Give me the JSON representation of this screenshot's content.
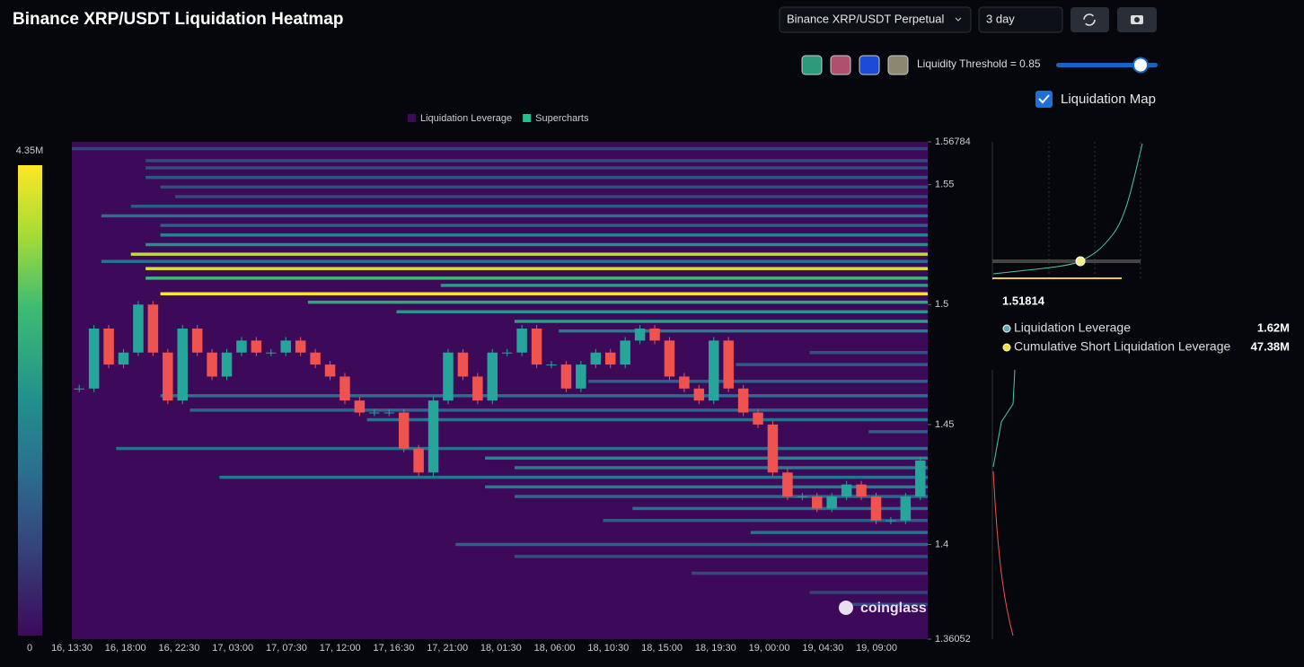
{
  "header": {
    "title": "Binance XRP/USDT Liquidation Heatmap"
  },
  "controls": {
    "pair": "Binance XRP/USDT Perpetual",
    "range": "3 day",
    "threshold": "Liquidity Threshold = 0.85",
    "map_toggle": "Liquidation Map"
  },
  "tooltip": {
    "price": "1.51814",
    "rows": [
      {
        "name": "Liquidation Leverage",
        "value": "1.62M"
      },
      {
        "name": "Cumulative Short Liquidation Leverage",
        "value": "47.38M"
      }
    ]
  },
  "watermark": "coinglass",
  "chart_data": {
    "type": "heatmap",
    "legend": [
      {
        "name": "Liquidation Leverage",
        "color": "#3d0a5a"
      },
      {
        "name": "Supercharts",
        "color": "#1ec38c"
      }
    ],
    "ylim": [
      1.36052,
      1.56784
    ],
    "yticks": [
      1.36052,
      1.4,
      1.45,
      1.5,
      1.55,
      1.56784
    ],
    "clim": [
      0,
      4.35
    ],
    "cticks": [
      0,
      {
        "value": 4.35,
        "label": "4.35M"
      }
    ],
    "xticks": [
      "16, 13:30",
      "16, 18:00",
      "16, 22:30",
      "17, 03:00",
      "17, 07:30",
      "17, 12:00",
      "17, 16:30",
      "17, 21:00",
      "18, 01:30",
      "18, 06:00",
      "18, 10:30",
      "18, 15:00",
      "18, 19:30",
      "19, 00:00",
      "19, 04:30",
      "19, 09:00"
    ],
    "price": {
      "up_color": "#26a69a",
      "down_color": "#ef5350",
      "values": [
        1.465,
        1.49,
        1.475,
        1.48,
        1.5,
        1.48,
        1.46,
        1.49,
        1.48,
        1.47,
        1.48,
        1.485,
        1.48,
        1.48,
        1.485,
        1.48,
        1.475,
        1.47,
        1.46,
        1.455,
        1.455,
        1.455,
        1.44,
        1.43,
        1.46,
        1.48,
        1.47,
        1.46,
        1.48,
        1.48,
        1.49,
        1.475,
        1.475,
        1.465,
        1.475,
        1.48,
        1.475,
        1.485,
        1.49,
        1.485,
        1.47,
        1.465,
        1.46,
        1.485,
        1.465,
        1.455,
        1.45,
        1.43,
        1.42,
        1.42,
        1.415,
        1.42,
        1.425,
        1.42,
        1.41,
        1.41,
        1.42,
        1.435
      ]
    },
    "bands": {
      "price": [
        1.565,
        1.56,
        1.557,
        1.553,
        1.549,
        1.545,
        1.541,
        1.537,
        1.533,
        1.529,
        1.525,
        1.521,
        1.518,
        1.515,
        1.511,
        1.508,
        1.5045,
        1.501,
        1.497,
        1.493,
        1.489,
        1.48,
        1.475,
        1.468,
        1.462,
        1.456,
        1.452,
        1.447,
        1.44,
        1.436,
        1.432,
        1.428,
        1.424,
        1.42,
        1.415,
        1.41,
        1.405,
        1.4,
        1.395,
        1.388,
        1.38,
        1.375
      ],
      "values": [
        0.8,
        0.9,
        1.0,
        1.1,
        1.0,
        0.9,
        1.2,
        1.5,
        1.3,
        2.0,
        2.2,
        3.9,
        1.6,
        4.1,
        3.0,
        2.4,
        4.35,
        2.6,
        2.3,
        2.5,
        1.8,
        1.0,
        1.2,
        1.3,
        1.5,
        1.4,
        1.6,
        1.2,
        1.5,
        2.0,
        1.8,
        1.6,
        1.7,
        1.4,
        1.5,
        1.2,
        1.6,
        1.3,
        1.0,
        0.9,
        0.8,
        0.9
      ],
      "start": [
        0,
        5,
        5,
        5,
        6,
        7,
        4,
        2,
        6,
        6,
        5,
        4,
        2,
        5,
        5,
        25,
        6,
        16,
        22,
        30,
        33,
        50,
        45,
        35,
        6,
        8,
        20,
        54,
        3,
        28,
        30,
        10,
        28,
        30,
        38,
        36,
        46,
        26,
        30,
        42,
        50,
        52
      ]
    }
  }
}
